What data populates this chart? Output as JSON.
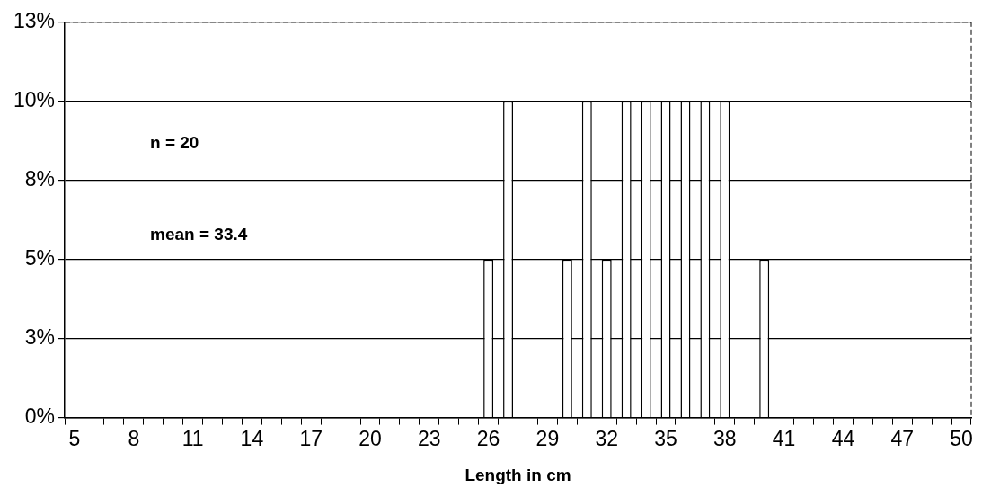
{
  "chart_data": {
    "type": "bar",
    "xlabel": "Length in cm",
    "categories": [
      "5",
      null,
      null,
      "8",
      null,
      null,
      "11",
      null,
      null,
      "14",
      null,
      null,
      "17",
      null,
      null,
      "20",
      null,
      null,
      "23",
      null,
      null,
      "26",
      null,
      null,
      "29",
      null,
      null,
      "32",
      null,
      null,
      "35",
      null,
      null,
      "38",
      null,
      null,
      "41",
      null,
      null,
      "44",
      null,
      null,
      "47",
      null,
      null,
      "50"
    ],
    "values": [
      0,
      0,
      0,
      0,
      0,
      0,
      0,
      0,
      0,
      0,
      0,
      0,
      0,
      0,
      0,
      0,
      0,
      0,
      0,
      0,
      0,
      5,
      10,
      0,
      0,
      5,
      10,
      5,
      10,
      10,
      10,
      10,
      10,
      10,
      0,
      5,
      0,
      0,
      0,
      0,
      0,
      0,
      0,
      0,
      0,
      0
    ],
    "color": "#ffffff",
    "ylim": [
      0,
      12.5
    ],
    "yticks": [
      {
        "value": 0,
        "label": "0%"
      },
      {
        "value": 2.5,
        "label": "3%"
      },
      {
        "value": 5,
        "label": "5%"
      },
      {
        "value": 7.5,
        "label": "8%"
      },
      {
        "value": 10,
        "label": "10%"
      },
      {
        "value": 12.5,
        "label": "13%"
      }
    ],
    "grid": "y",
    "annotations": [
      "n = 20",
      "mean = 33.4"
    ]
  }
}
